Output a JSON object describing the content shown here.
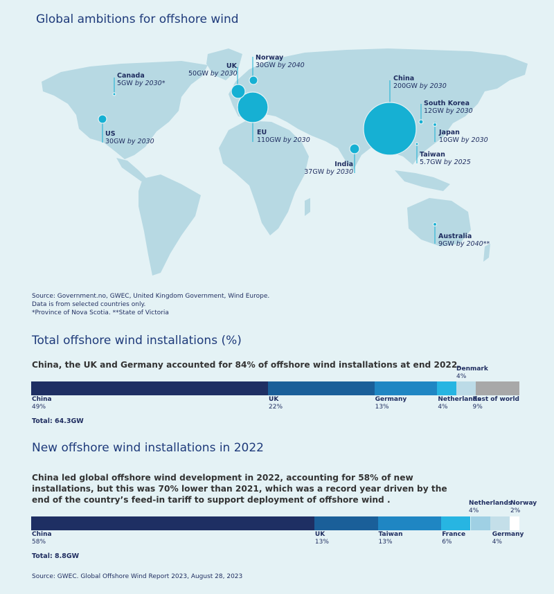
{
  "map": {
    "title": "Global ambitions for offshore wind",
    "bubbles": [
      {
        "name": "Canada",
        "value_text": "5GW",
        "by": "by 2030*"
      },
      {
        "name": "US",
        "value_text": "30GW",
        "by": "by 2030"
      },
      {
        "name": "UK",
        "value_text": "50GW",
        "by": "by 2030"
      },
      {
        "name": "Norway",
        "value_text": "30GW",
        "by": "by 2040"
      },
      {
        "name": "EU",
        "value_text": "110GW",
        "by": "by 2030"
      },
      {
        "name": "China",
        "value_text": "200GW",
        "by": "by 2030"
      },
      {
        "name": "South Korea",
        "value_text": "12GW",
        "by": "by 2030"
      },
      {
        "name": "Japan",
        "value_text": "10GW",
        "by": "by 2030"
      },
      {
        "name": "Taiwan",
        "value_text": "5.7GW",
        "by": "by 2025"
      },
      {
        "name": "India",
        "value_text": "37GW",
        "by": "by 2030"
      },
      {
        "name": "Australia",
        "value_text": "9GW",
        "by": "by 2040**"
      }
    ],
    "source": [
      "Source: Government.no, GWEC, United Kingdom Government, Wind Europe.",
      "Data is from selected countries only.",
      "*Province of Nova Scotia. **State of Victoria"
    ]
  },
  "chart_data": [
    {
      "type": "bar",
      "title": "Global ambitions for offshore wind",
      "unit": "GW",
      "categories": [
        "China",
        "EU",
        "UK",
        "India",
        "US",
        "Norway",
        "South Korea",
        "Japan",
        "Australia",
        "Taiwan",
        "Canada"
      ],
      "values": [
        200,
        110,
        50,
        37,
        30,
        30,
        12,
        10,
        9,
        5.7,
        5
      ],
      "target_year": [
        "2030",
        "2030",
        "2030",
        "2030",
        "2030",
        "2040",
        "2030",
        "2030",
        "2040",
        "2025",
        "2030"
      ]
    },
    {
      "type": "bar",
      "stacked": true,
      "title": "Total offshore wind installations (%)",
      "subtitle": "China, the UK and Germany accounted for 84% of offshore wind installations at end 2022.",
      "categories": [
        "China",
        "UK",
        "Germany",
        "Netherlands",
        "Denmark",
        "Rest of world"
      ],
      "values": [
        49,
        22,
        13,
        4,
        4,
        9
      ],
      "total": "Total: 64.3GW"
    },
    {
      "type": "bar",
      "stacked": true,
      "title": "New offshore wind installations in 2022",
      "subtitle": "China led global offshore wind development in 2022, accounting for 58% of new installations, but this was 70% lower than 2021, which was a record year driven by the end of the country's feed-in tariff to support deployment of offshore wind .",
      "categories": [
        "China",
        "UK",
        "Taiwan",
        "France",
        "Netherlands",
        "Germany",
        "Norway"
      ],
      "values": [
        58,
        13,
        13,
        6,
        4,
        4,
        2
      ],
      "total": "Total: 8.8GW"
    }
  ],
  "total_chart": {
    "title": "Total offshore wind installations (%)",
    "subtitle": "China, the UK and Germany accounted for 84% of offshore wind installations at end 2022.",
    "segments": [
      {
        "label": "China",
        "pct": "49%",
        "value": 49,
        "color": "#1e2f63"
      },
      {
        "label": "UK",
        "pct": "22%",
        "value": 22,
        "color": "#1a5f99"
      },
      {
        "label": "Germany",
        "pct": "13%",
        "value": 13,
        "color": "#1f86c3"
      },
      {
        "label": "Netherlands",
        "pct": "4%",
        "value": 4,
        "color": "#27b5e2"
      },
      {
        "label": "Denmark",
        "pct": "4%",
        "value": 4,
        "color": "#bcdbe7"
      },
      {
        "label": "Rest of world",
        "pct": "9%",
        "value": 9,
        "color": "#a8a8a8"
      }
    ],
    "total": "Total: 64.3GW"
  },
  "new_chart": {
    "title": "New offshore wind installations in 2022",
    "subtitle": "China led global offshore wind development in 2022, accounting for 58% of new installations, but this was 70% lower than 2021, which was a record year driven by the end of the country’s feed-in tariff to support deployment of offshore wind .",
    "segments": [
      {
        "label": "China",
        "pct": "58%",
        "value": 58,
        "color": "#1e2f63"
      },
      {
        "label": "UK",
        "pct": "13%",
        "value": 13,
        "color": "#1a5f99"
      },
      {
        "label": "Taiwan",
        "pct": "13%",
        "value": 13,
        "color": "#1f86c3"
      },
      {
        "label": "France",
        "pct": "6%",
        "value": 6,
        "color": "#27b5e2"
      },
      {
        "label": "Netherlands",
        "pct": "4%",
        "value": 4,
        "color": "#9fd0e4"
      },
      {
        "label": "Germany",
        "pct": "4%",
        "value": 4,
        "color": "#c4dfe9"
      },
      {
        "label": "Norway",
        "pct": "2%",
        "value": 2,
        "color": "#ffffff"
      }
    ],
    "total": "Total: 8.8GW"
  },
  "footer": {
    "source": "Source: GWEC. Global Offshore Wind Report 2023, August 28, 2023"
  }
}
